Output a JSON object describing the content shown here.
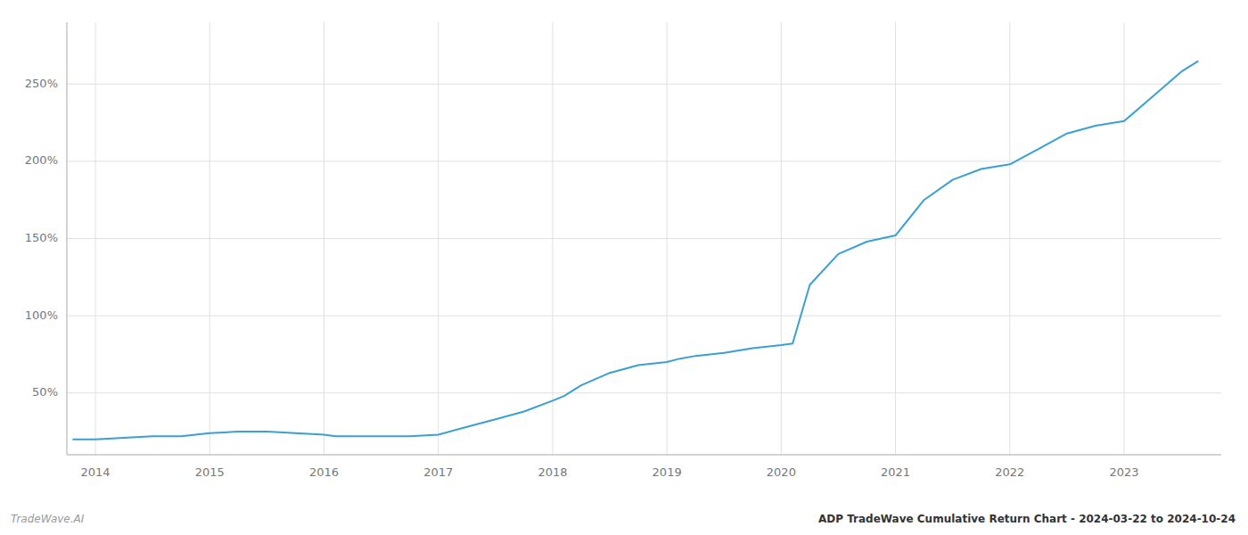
{
  "chart_data": {
    "type": "line",
    "title": "ADP TradeWave Cumulative Return Chart - 2024-03-22 to 2024-10-24",
    "annotations": [
      "TradeWave.AI"
    ],
    "color": "#3a9fd1",
    "grid": true,
    "x": [
      2013.8,
      2014.0,
      2014.25,
      2014.5,
      2014.75,
      2015.0,
      2015.25,
      2015.5,
      2015.75,
      2016.0,
      2016.1,
      2016.25,
      2016.5,
      2016.75,
      2017.0,
      2017.25,
      2017.5,
      2017.75,
      2018.0,
      2018.1,
      2018.25,
      2018.5,
      2018.75,
      2019.0,
      2019.1,
      2019.25,
      2019.5,
      2019.75,
      2020.0,
      2020.1,
      2020.25,
      2020.5,
      2020.75,
      2021.0,
      2021.25,
      2021.5,
      2021.75,
      2022.0,
      2022.25,
      2022.5,
      2022.75,
      2023.0,
      2023.25,
      2023.5,
      2023.65
    ],
    "values": [
      20,
      20,
      21,
      22,
      22,
      24,
      25,
      25,
      24,
      23,
      22,
      22,
      22,
      22,
      23,
      28,
      33,
      38,
      45,
      48,
      55,
      63,
      68,
      70,
      72,
      74,
      76,
      79,
      81,
      82,
      120,
      140,
      148,
      152,
      175,
      188,
      195,
      198,
      208,
      218,
      223,
      226,
      242,
      258,
      265
    ],
    "xlim": [
      2013.75,
      2023.85
    ],
    "xticks": [
      2014,
      2015,
      2016,
      2017,
      2018,
      2019,
      2020,
      2021,
      2022,
      2023
    ],
    "ylim": [
      10,
      290
    ],
    "yticks": [
      {
        "value": 50,
        "label": "50%"
      },
      {
        "value": 100,
        "label": "100%"
      },
      {
        "value": 150,
        "label": "150%"
      },
      {
        "value": 200,
        "label": "200%"
      },
      {
        "value": 250,
        "label": "250%"
      }
    ]
  }
}
